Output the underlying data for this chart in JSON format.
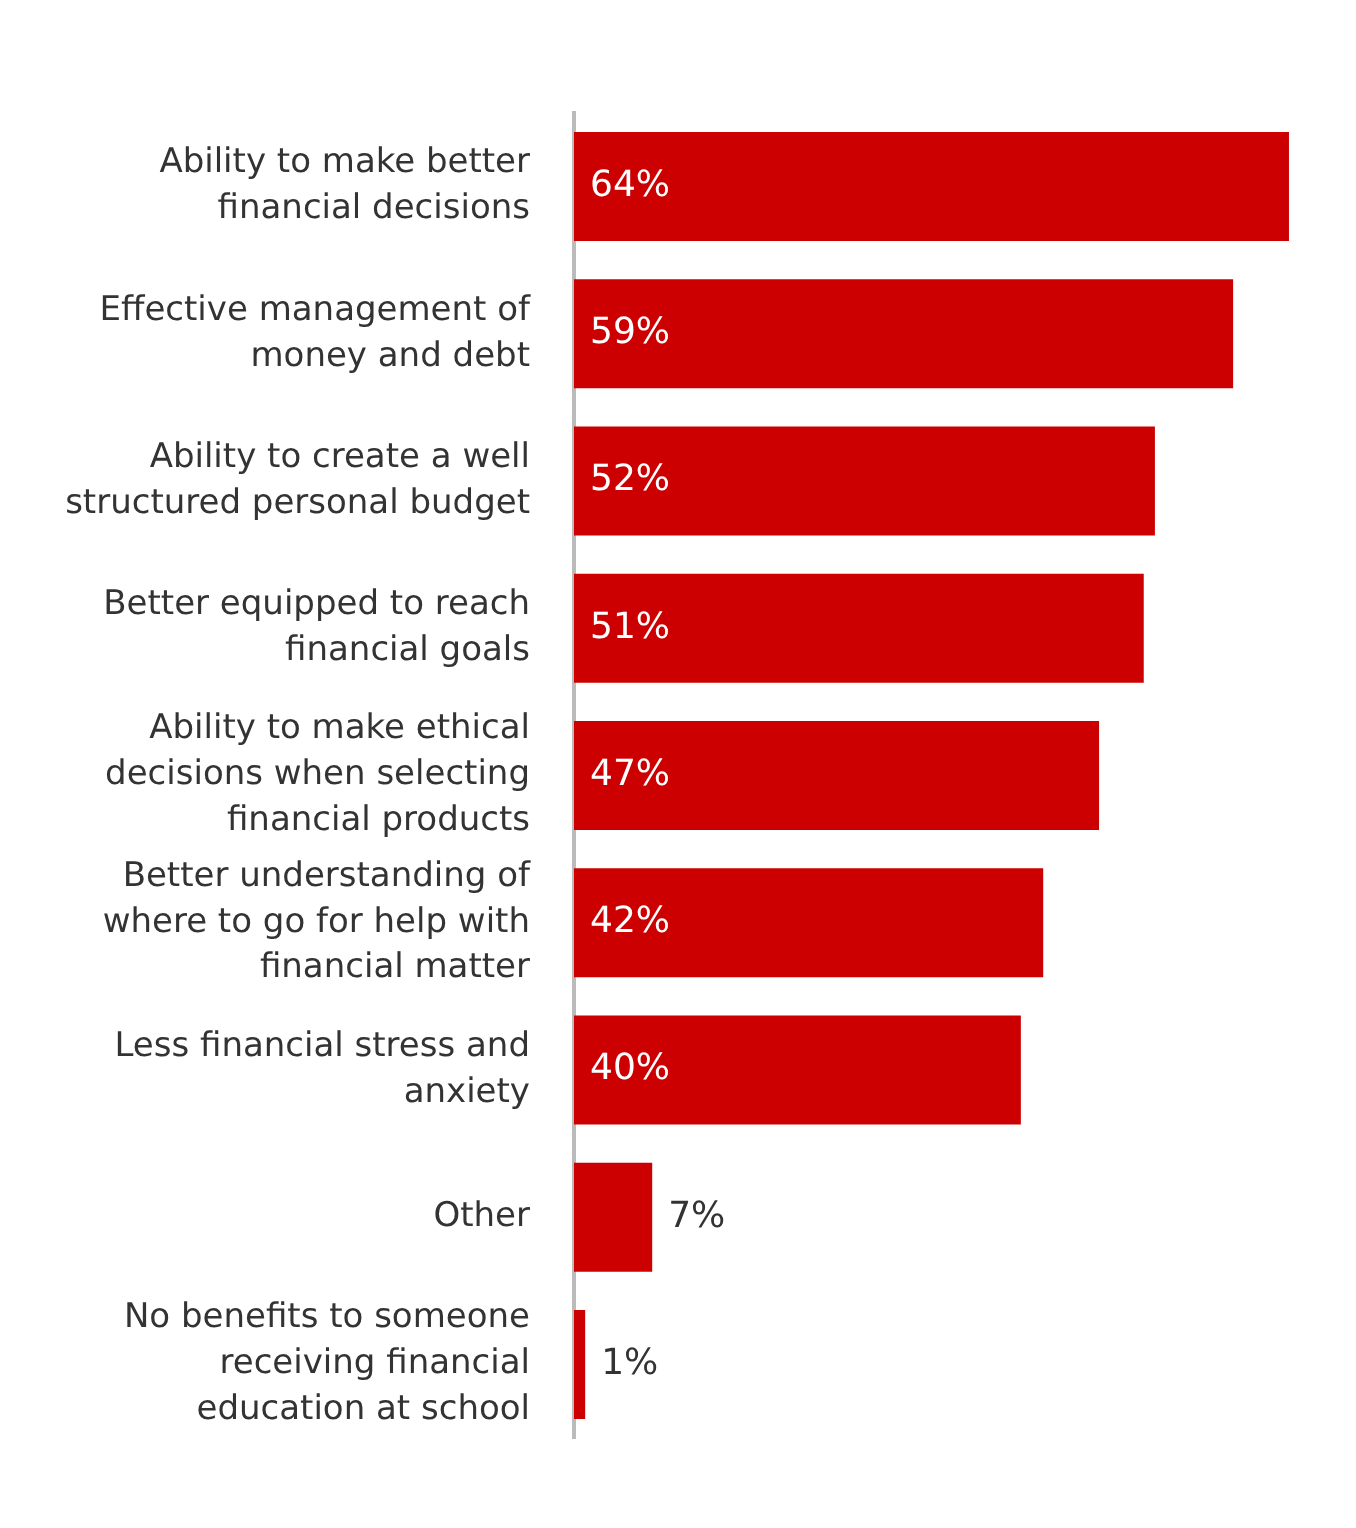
{
  "chart_data": {
    "type": "bar",
    "orientation": "horizontal",
    "categories": [
      "Ability to make better financial decisions",
      "Effective management of money and debt",
      "Ability to create a well structured personal budget",
      "Better equipped to reach financial goals",
      "Ability to make ethical decisions when selecting financial products",
      "Better understanding of where to go for help with financial matter",
      "Less financial stress and anxiety",
      "Other",
      "No benefits to someone receiving financial education at school"
    ],
    "values": [
      64,
      59,
      52,
      51,
      47,
      42,
      40,
      7,
      1
    ],
    "value_labels": [
      "64%",
      "59%",
      "52%",
      "51%",
      "47%",
      "42%",
      "40%",
      "7%",
      "1%"
    ],
    "color": "#cc0000",
    "grid": false,
    "legend": false
  }
}
